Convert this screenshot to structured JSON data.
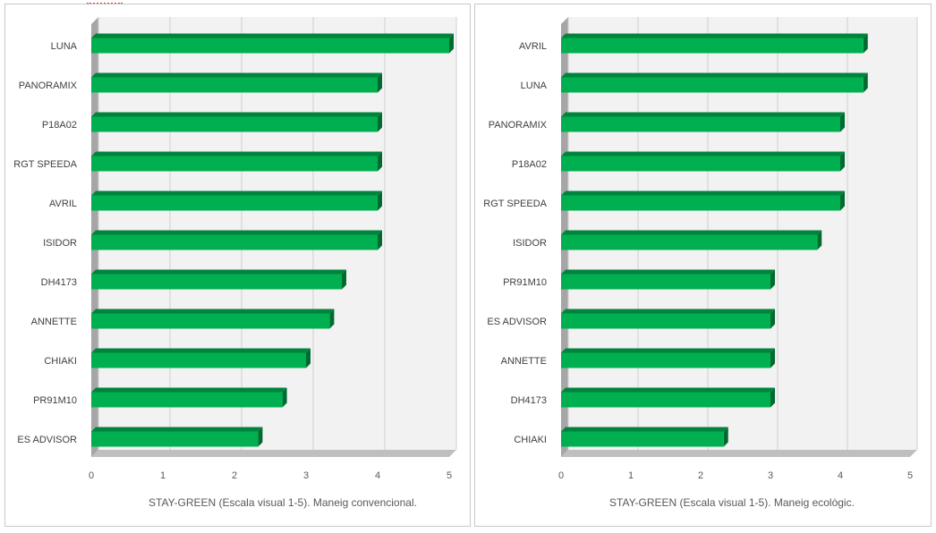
{
  "chart_data": [
    {
      "type": "bar",
      "orientation": "horizontal",
      "categories": [
        "LUNA",
        "PANORAMIX",
        "P18A02",
        "RGT SPEEDA",
        "AVRIL",
        "ISIDOR",
        "DH4173",
        "ANNETTE",
        "CHIAKI",
        "PR91M10",
        "ES ADVISOR"
      ],
      "values": [
        5.0,
        4.0,
        4.0,
        4.0,
        4.0,
        4.0,
        3.5,
        3.33,
        3.0,
        2.67,
        2.33
      ],
      "xlabel": "STAY-GREEN (Escala visual 1-5). Maneig convencional.",
      "ylabel": "",
      "xlim": [
        0,
        5
      ],
      "xticks": [
        "0",
        "1",
        "2",
        "3",
        "4",
        "5"
      ],
      "grid": true,
      "bar_color": "#00b050"
    },
    {
      "type": "bar",
      "orientation": "horizontal",
      "categories": [
        "AVRIL",
        "LUNA",
        "PANORAMIX",
        "P18A02",
        "RGT SPEEDA",
        "ISIDOR",
        "PR91M10",
        "ES ADVISOR",
        "ANNETTE",
        "DH4173",
        "CHIAKI"
      ],
      "values": [
        4.33,
        4.33,
        4.0,
        4.0,
        4.0,
        3.67,
        3.0,
        3.0,
        3.0,
        3.0,
        2.33
      ],
      "xlabel": "STAY-GREEN (Escala visual 1-5). Maneig ecològic.",
      "ylabel": "",
      "xlim": [
        0,
        5
      ],
      "xticks": [
        "0",
        "1",
        "2",
        "3",
        "4",
        "5"
      ],
      "grid": true,
      "bar_color": "#00b050"
    }
  ]
}
